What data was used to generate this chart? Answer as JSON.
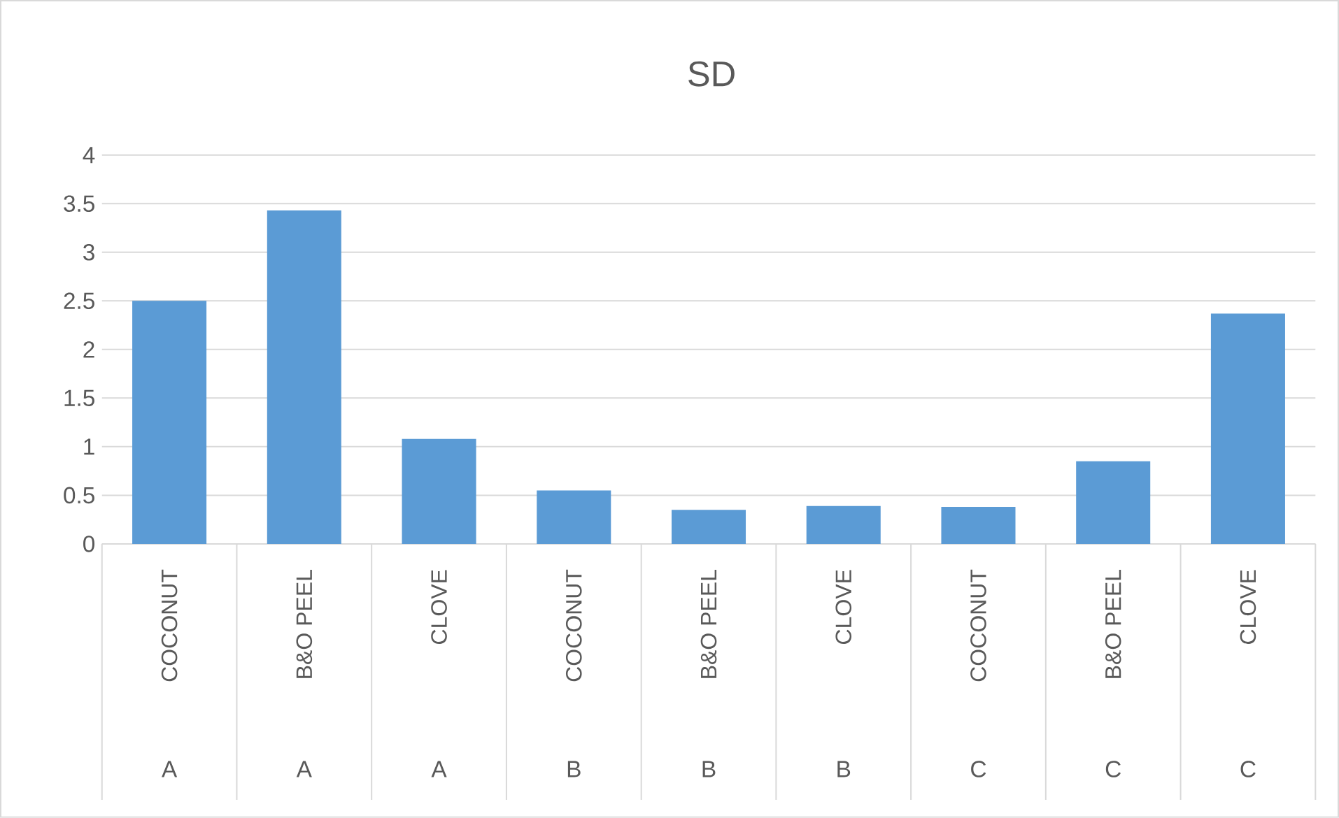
{
  "chart_data": {
    "type": "bar",
    "title": "SD",
    "categories": [
      "COCONUT",
      "B&O PEEL",
      "CLOVE",
      "COCONUT",
      "B&O PEEL",
      "CLOVE",
      "COCONUT",
      "B&O PEEL",
      "CLOVE"
    ],
    "annotations": [
      "A",
      "A",
      "A",
      "B",
      "B",
      "B",
      "C",
      "C",
      "C"
    ],
    "values": [
      2.5,
      3.43,
      1.08,
      0.55,
      0.35,
      0.39,
      0.38,
      0.85,
      2.37
    ],
    "color": "#5b9bd5",
    "ylim": [
      0,
      4
    ],
    "yticks": [
      0,
      0.5,
      1,
      1.5,
      2,
      2.5,
      3,
      3.5,
      4
    ],
    "grid": "y"
  }
}
